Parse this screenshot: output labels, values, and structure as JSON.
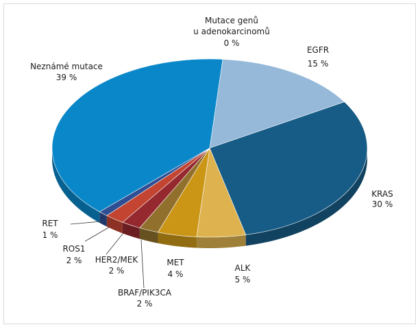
{
  "chart_data": {
    "type": "pie",
    "title": "",
    "slices": [
      {
        "name": "Mutace genů u adenokarcinomů",
        "value_label": "0 %",
        "value": 0,
        "color": "#cfe0ef"
      },
      {
        "name": "EGFR",
        "value_label": "15 %",
        "value": 15,
        "color": "#96b9da"
      },
      {
        "name": "KRAS",
        "value_label": "30 %",
        "value": 30,
        "color": "#175c86"
      },
      {
        "name": "ALK",
        "value_label": "5 %",
        "value": 5,
        "color": "#ddb24f"
      },
      {
        "name": "MET",
        "value_label": "4 %",
        "value": 4,
        "color": "#cb9616"
      },
      {
        "name": "BRAF/PIK3CA",
        "value_label": "2 %",
        "value": 2,
        "color": "#91702d"
      },
      {
        "name": "HER2/MEK",
        "value_label": "2 %",
        "value": 2,
        "color": "#95292f"
      },
      {
        "name": "ROS1",
        "value_label": "2 %",
        "value": 2,
        "color": "#c24431"
      },
      {
        "name": "RET",
        "value_label": "1 %",
        "value": 1,
        "color": "#2e4f93"
      },
      {
        "name": "Neznámé mutace",
        "value_label": "39 %",
        "value": 39,
        "color": "#0a87c8"
      }
    ]
  }
}
